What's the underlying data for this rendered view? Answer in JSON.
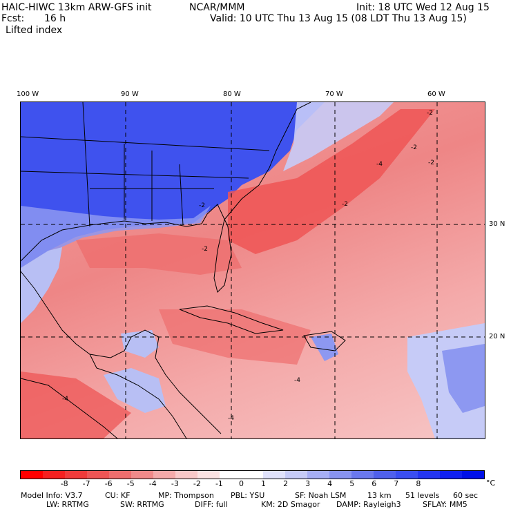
{
  "header": {
    "model_title": "HAIC-HIWC 13km ARW-GFS init",
    "org": "NCAR/MMM",
    "init": "Init: 18 UTC Wed 12 Aug 15",
    "fcst_label": "Fcst:",
    "fcst_value": "16 h",
    "valid": "Valid: 10 UTC Thu 13 Aug 15 (08 LDT Thu 13 Aug 15)",
    "field": "Lifted index"
  },
  "map": {
    "lon_labels": [
      "100 W",
      "90 W",
      "80 W",
      "70 W",
      "60 W"
    ],
    "lat_labels": [
      "30 N",
      "20 N"
    ],
    "contour_labels": [
      "-2",
      "-2",
      "-2",
      "-2",
      "-2",
      "-2",
      "-4",
      "-4",
      "-4",
      "-4"
    ],
    "colors": {
      "land_stable": "#3a4ef0",
      "ocean_unstable": "#ee8686",
      "grid": "#000000"
    }
  },
  "colorbar": {
    "colors": [
      "#ff0000",
      "#f52020",
      "#f03a3a",
      "#ee5555",
      "#ee6e6e",
      "#f08a8a",
      "#f4aaaa",
      "#f8c8c8",
      "#fbe2e2",
      "#ffffff",
      "#ffffff",
      "#e0e2fb",
      "#c6cbf7",
      "#a6aef4",
      "#8893f1",
      "#6a78ee",
      "#4f60ec",
      "#3a4ef0",
      "#2436f0",
      "#1020f0",
      "#0010e8"
    ],
    "ticks": [
      "-8",
      "-7",
      "-6",
      "-5",
      "-4",
      "-3",
      "-2",
      "-1",
      "0",
      "1",
      "2",
      "3",
      "4",
      "5",
      "6",
      "7",
      "8"
    ],
    "unit": "°C"
  },
  "footer": {
    "line1": [
      "Model Info: V3.7",
      "CU: KF",
      "MP: Thompson",
      "PBL: YSU",
      "SF: Noah LSM",
      "13 km",
      "51 levels",
      "60 sec"
    ],
    "line2": [
      "LW: RRTMG",
      "SW: RRTMG",
      "DIFF: full",
      "KM: 2D Smagor",
      "DAMP: Rayleigh3",
      "SFLAY: MM5"
    ]
  }
}
